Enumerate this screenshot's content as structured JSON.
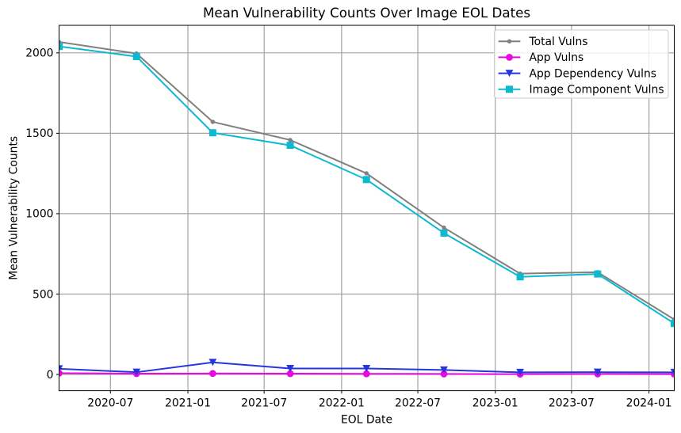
{
  "figure": {
    "background": "#ffffff"
  },
  "chart_data": {
    "type": "line",
    "title": "Mean Vulnerability Counts Over Image EOL Dates",
    "xlabel": "EOL Date",
    "ylabel": "Mean Vulnerability Counts",
    "grid": true,
    "legend_position": "upper right",
    "x_range": [
      "2020-03-01",
      "2024-03-01"
    ],
    "x": [
      "2020-03-01",
      "2020-09-01",
      "2021-03-01",
      "2021-09-01",
      "2022-03-01",
      "2022-09-01",
      "2023-03-01",
      "2023-09-01",
      "2024-03-01"
    ],
    "x_ticks": [
      {
        "date": "2020-07-01",
        "label": "2020-07"
      },
      {
        "date": "2021-01-01",
        "label": "2021-01"
      },
      {
        "date": "2021-07-01",
        "label": "2021-07"
      },
      {
        "date": "2022-01-01",
        "label": "2022-01"
      },
      {
        "date": "2022-07-01",
        "label": "2022-07"
      },
      {
        "date": "2023-01-01",
        "label": "2023-01"
      },
      {
        "date": "2023-07-01",
        "label": "2023-07"
      },
      {
        "date": "2024-01-01",
        "label": "2024-01"
      }
    ],
    "y_ticks": [
      {
        "value": 0,
        "label": "0"
      },
      {
        "value": 500,
        "label": "500"
      },
      {
        "value": 1000,
        "label": "1000"
      },
      {
        "value": 1500,
        "label": "1500"
      },
      {
        "value": 2000,
        "label": "2000"
      }
    ],
    "ylim": [
      -101.3,
      2171.3
    ],
    "series": [
      {
        "name": "Total Vulns",
        "color": "#808080",
        "marker": "dot",
        "values": [
          2068,
          1996,
          1571,
          1458,
          1251,
          913,
          627,
          636,
          342
        ]
      },
      {
        "name": "App Vulns",
        "color": "#E908E0",
        "marker": "circle",
        "values": [
          8,
          5,
          6,
          5,
          4,
          3,
          2,
          3,
          2
        ]
      },
      {
        "name": "App Dependency Vulns",
        "color": "#2636DD",
        "marker": "triangle-down",
        "values": [
          35,
          14,
          75,
          37,
          37,
          28,
          13,
          14,
          13
        ]
      },
      {
        "name": "Image Component Vulns",
        "color": "#0CB9D1",
        "marker": "square",
        "values": [
          2040,
          1977,
          1503,
          1425,
          1212,
          879,
          607,
          625,
          317
        ]
      }
    ]
  }
}
